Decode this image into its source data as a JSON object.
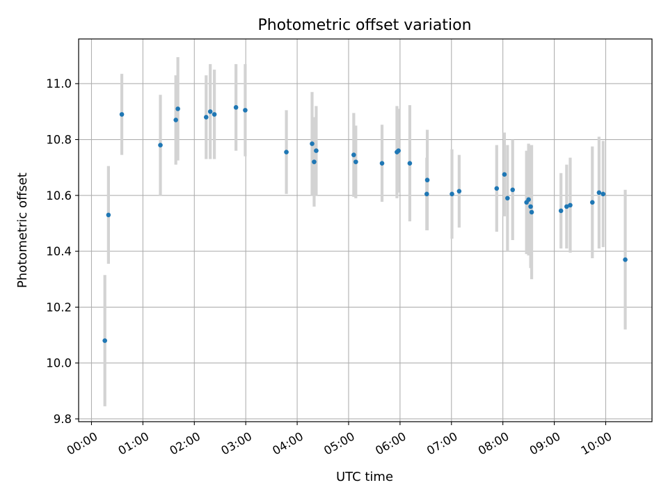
{
  "chart_data": {
    "type": "scatter",
    "title": "Photometric offset variation",
    "xlabel": "UTC time",
    "ylabel": "Photometric offset",
    "x_unit": "hours UTC",
    "xlim": [
      -0.25,
      10.9
    ],
    "ylim": [
      9.79,
      11.16
    ],
    "x_ticks": [
      {
        "value": 0,
        "label": "00:00"
      },
      {
        "value": 1,
        "label": "01:00"
      },
      {
        "value": 2,
        "label": "02:00"
      },
      {
        "value": 3,
        "label": "03:00"
      },
      {
        "value": 4,
        "label": "04:00"
      },
      {
        "value": 5,
        "label": "05:00"
      },
      {
        "value": 6,
        "label": "06:00"
      },
      {
        "value": 7,
        "label": "07:00"
      },
      {
        "value": 8,
        "label": "08:00"
      },
      {
        "value": 9,
        "label": "09:00"
      },
      {
        "value": 10,
        "label": "10:00"
      }
    ],
    "y_ticks": [
      {
        "value": 9.8,
        "label": "9.8"
      },
      {
        "value": 10.0,
        "label": "10.0"
      },
      {
        "value": 10.2,
        "label": "10.2"
      },
      {
        "value": 10.4,
        "label": "10.4"
      },
      {
        "value": 10.6,
        "label": "10.6"
      },
      {
        "value": 10.8,
        "label": "10.8"
      },
      {
        "value": 11.0,
        "label": "11.0"
      }
    ],
    "grid": true,
    "colors": {
      "point": "#1f77b4",
      "errorbar": "#d3d3d3",
      "grid": "#b0b0b0"
    },
    "points": [
      {
        "x": 0.26,
        "y": 10.08,
        "err": 0.235
      },
      {
        "x": 0.33,
        "y": 10.53,
        "err": 0.175
      },
      {
        "x": 0.59,
        "y": 10.89,
        "err": 0.145
      },
      {
        "x": 1.34,
        "y": 10.78,
        "err": 0.18
      },
      {
        "x": 1.64,
        "y": 10.87,
        "err": 0.16
      },
      {
        "x": 1.68,
        "y": 10.91,
        "err": 0.185
      },
      {
        "x": 2.23,
        "y": 10.88,
        "err": 0.15
      },
      {
        "x": 2.31,
        "y": 10.9,
        "err": 0.17
      },
      {
        "x": 2.39,
        "y": 10.89,
        "err": 0.16
      },
      {
        "x": 2.81,
        "y": 10.915,
        "err": 0.155
      },
      {
        "x": 2.99,
        "y": 10.905,
        "err": 0.165
      },
      {
        "x": 3.79,
        "y": 10.755,
        "err": 0.15
      },
      {
        "x": 4.29,
        "y": 10.785,
        "err": 0.185
      },
      {
        "x": 4.33,
        "y": 10.72,
        "err": 0.16
      },
      {
        "x": 4.37,
        "y": 10.76,
        "err": 0.16
      },
      {
        "x": 5.1,
        "y": 10.745,
        "err": 0.15
      },
      {
        "x": 5.14,
        "y": 10.72,
        "err": 0.13
      },
      {
        "x": 5.65,
        "y": 10.715,
        "err": 0.138
      },
      {
        "x": 5.94,
        "y": 10.755,
        "err": 0.165
      },
      {
        "x": 5.97,
        "y": 10.76,
        "err": 0.15
      },
      {
        "x": 6.19,
        "y": 10.715,
        "err": 0.208
      },
      {
        "x": 6.52,
        "y": 10.605,
        "err": 0.13
      },
      {
        "x": 6.53,
        "y": 10.655,
        "err": 0.18
      },
      {
        "x": 7.01,
        "y": 10.605,
        "err": 0.16
      },
      {
        "x": 7.15,
        "y": 10.615,
        "err": 0.13
      },
      {
        "x": 7.88,
        "y": 10.625,
        "err": 0.155
      },
      {
        "x": 8.03,
        "y": 10.675,
        "err": 0.15
      },
      {
        "x": 8.09,
        "y": 10.59,
        "err": 0.19
      },
      {
        "x": 8.19,
        "y": 10.62,
        "err": 0.18
      },
      {
        "x": 8.46,
        "y": 10.575,
        "err": 0.185
      },
      {
        "x": 8.5,
        "y": 10.585,
        "err": 0.2
      },
      {
        "x": 8.54,
        "y": 10.56,
        "err": 0.22
      },
      {
        "x": 8.56,
        "y": 10.54,
        "err": 0.24
      },
      {
        "x": 9.13,
        "y": 10.545,
        "err": 0.135
      },
      {
        "x": 9.24,
        "y": 10.56,
        "err": 0.15
      },
      {
        "x": 9.31,
        "y": 10.565,
        "err": 0.17
      },
      {
        "x": 9.74,
        "y": 10.575,
        "err": 0.2
      },
      {
        "x": 9.87,
        "y": 10.61,
        "err": 0.2
      },
      {
        "x": 9.95,
        "y": 10.605,
        "err": 0.19
      },
      {
        "x": 10.38,
        "y": 10.37,
        "err": 0.25
      }
    ]
  }
}
